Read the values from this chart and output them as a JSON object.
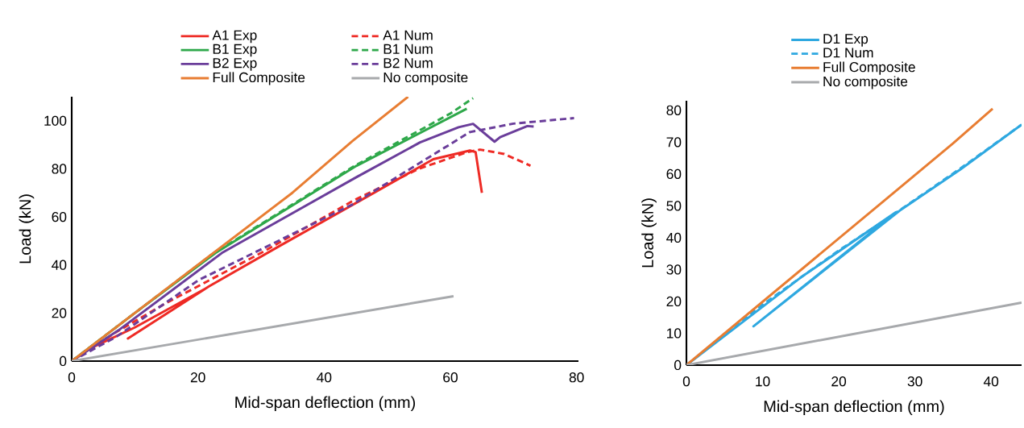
{
  "chart_data": [
    {
      "type": "line",
      "xlabel": "Mid-span deflection (mm)",
      "ylabel": "Load (kN)",
      "xlim": [
        0,
        80.3
      ],
      "ylim": [
        0,
        110
      ],
      "xticks": [
        0,
        20,
        40,
        60,
        80
      ],
      "yticks": [
        0,
        20,
        40,
        60,
        80,
        100
      ],
      "legend": "top",
      "series": [
        {
          "name": "A1 Exp",
          "color": "#ee2a24",
          "line_style": "solid",
          "x": [
            0,
            3.1,
            10,
            21.2,
            8.9,
            21.7,
            33,
            45.6,
            57.3,
            63.1,
            64,
            65
          ],
          "values": [
            0,
            5.5,
            14,
            30.2,
            9.4,
            31,
            48,
            66.6,
            84,
            87.6,
            87,
            70
          ]
        },
        {
          "name": "A1 Num",
          "color": "#ee2a24",
          "line_style": "dashed",
          "x": [
            0,
            7,
            14.8,
            30,
            44.5,
            55,
            62.6,
            64.7,
            68.5,
            72.7
          ],
          "values": [
            0,
            12,
            23.9,
            45,
            66.6,
            80,
            86.9,
            88,
            86.2,
            81.3
          ]
        },
        {
          "name": "B1 Exp",
          "color": "#2ea84a",
          "line_style": "solid",
          "x": [
            0,
            10,
            22.8,
            45.1,
            62.6
          ],
          "values": [
            0,
            20,
            45,
            81.2,
            105
          ]
        },
        {
          "name": "B1 Num",
          "color": "#2ea84a",
          "line_style": "dashed",
          "x": [
            0,
            10,
            22,
            45,
            60,
            63.6
          ],
          "values": [
            0,
            20,
            44,
            81.5,
            103,
            109.4
          ]
        },
        {
          "name": "B2 Exp",
          "color": "#6a3d9a",
          "line_style": "solid",
          "x": [
            0,
            7.4,
            23.8,
            45.1,
            55.2,
            61.3,
            63.6,
            67,
            67.9,
            72.2,
            73.2
          ],
          "values": [
            0,
            12.8,
            45,
            76.5,
            91,
            97.3,
            98.7,
            91.3,
            93.2,
            97.8,
            97.6
          ]
        },
        {
          "name": "B2 Num",
          "color": "#6a3d9a",
          "line_style": "dashed",
          "x": [
            0,
            7,
            20.1,
            44.5,
            63.1,
            70,
            79.6
          ],
          "values": [
            0,
            10,
            33.7,
            65.2,
            95.3,
            98.8,
            101.1
          ]
        },
        {
          "name": "Full Composite",
          "color": "#e87d32",
          "line_style": "solid",
          "x": [
            0,
            35,
            44.5,
            53.3
          ],
          "values": [
            0,
            70.1,
            91.6,
            110
          ]
        },
        {
          "name": "No composite",
          "color": "#a7a9ac",
          "line_style": "solid",
          "x": [
            0,
            60.5
          ],
          "values": [
            0,
            27
          ]
        }
      ]
    },
    {
      "type": "line",
      "xlabel": "Mid-span deflection (mm)",
      "ylabel": "Load (kN)",
      "xlim": [
        0,
        44
      ],
      "ylim": [
        0,
        83
      ],
      "xticks": [
        0,
        10,
        20,
        30,
        40
      ],
      "yticks": [
        0,
        10,
        20,
        30,
        40,
        50,
        60,
        70,
        80
      ],
      "legend": "top",
      "series": [
        {
          "name": "D1 Exp",
          "color": "#2ea8e0",
          "line_style": "solid",
          "x": [
            0,
            15,
            27.5,
            8.8,
            28,
            36,
            44
          ],
          "values": [
            0,
            27.5,
            48,
            12.2,
            48.5,
            61.5,
            75.5
          ]
        },
        {
          "name": "D1 Num",
          "color": "#2ea8e0",
          "line_style": "dashed",
          "x": [
            0,
            10,
            20,
            27,
            36,
            44
          ],
          "values": [
            0,
            19,
            36,
            47,
            61.8,
            75.5
          ]
        },
        {
          "name": "Full Composite",
          "color": "#e87d32",
          "line_style": "solid",
          "x": [
            0,
            35,
            40.2
          ],
          "values": [
            0,
            69.6,
            80.5
          ]
        },
        {
          "name": "No composite",
          "color": "#a7a9ac",
          "line_style": "solid",
          "x": [
            0,
            44
          ],
          "values": [
            0,
            19.6
          ]
        }
      ]
    }
  ]
}
